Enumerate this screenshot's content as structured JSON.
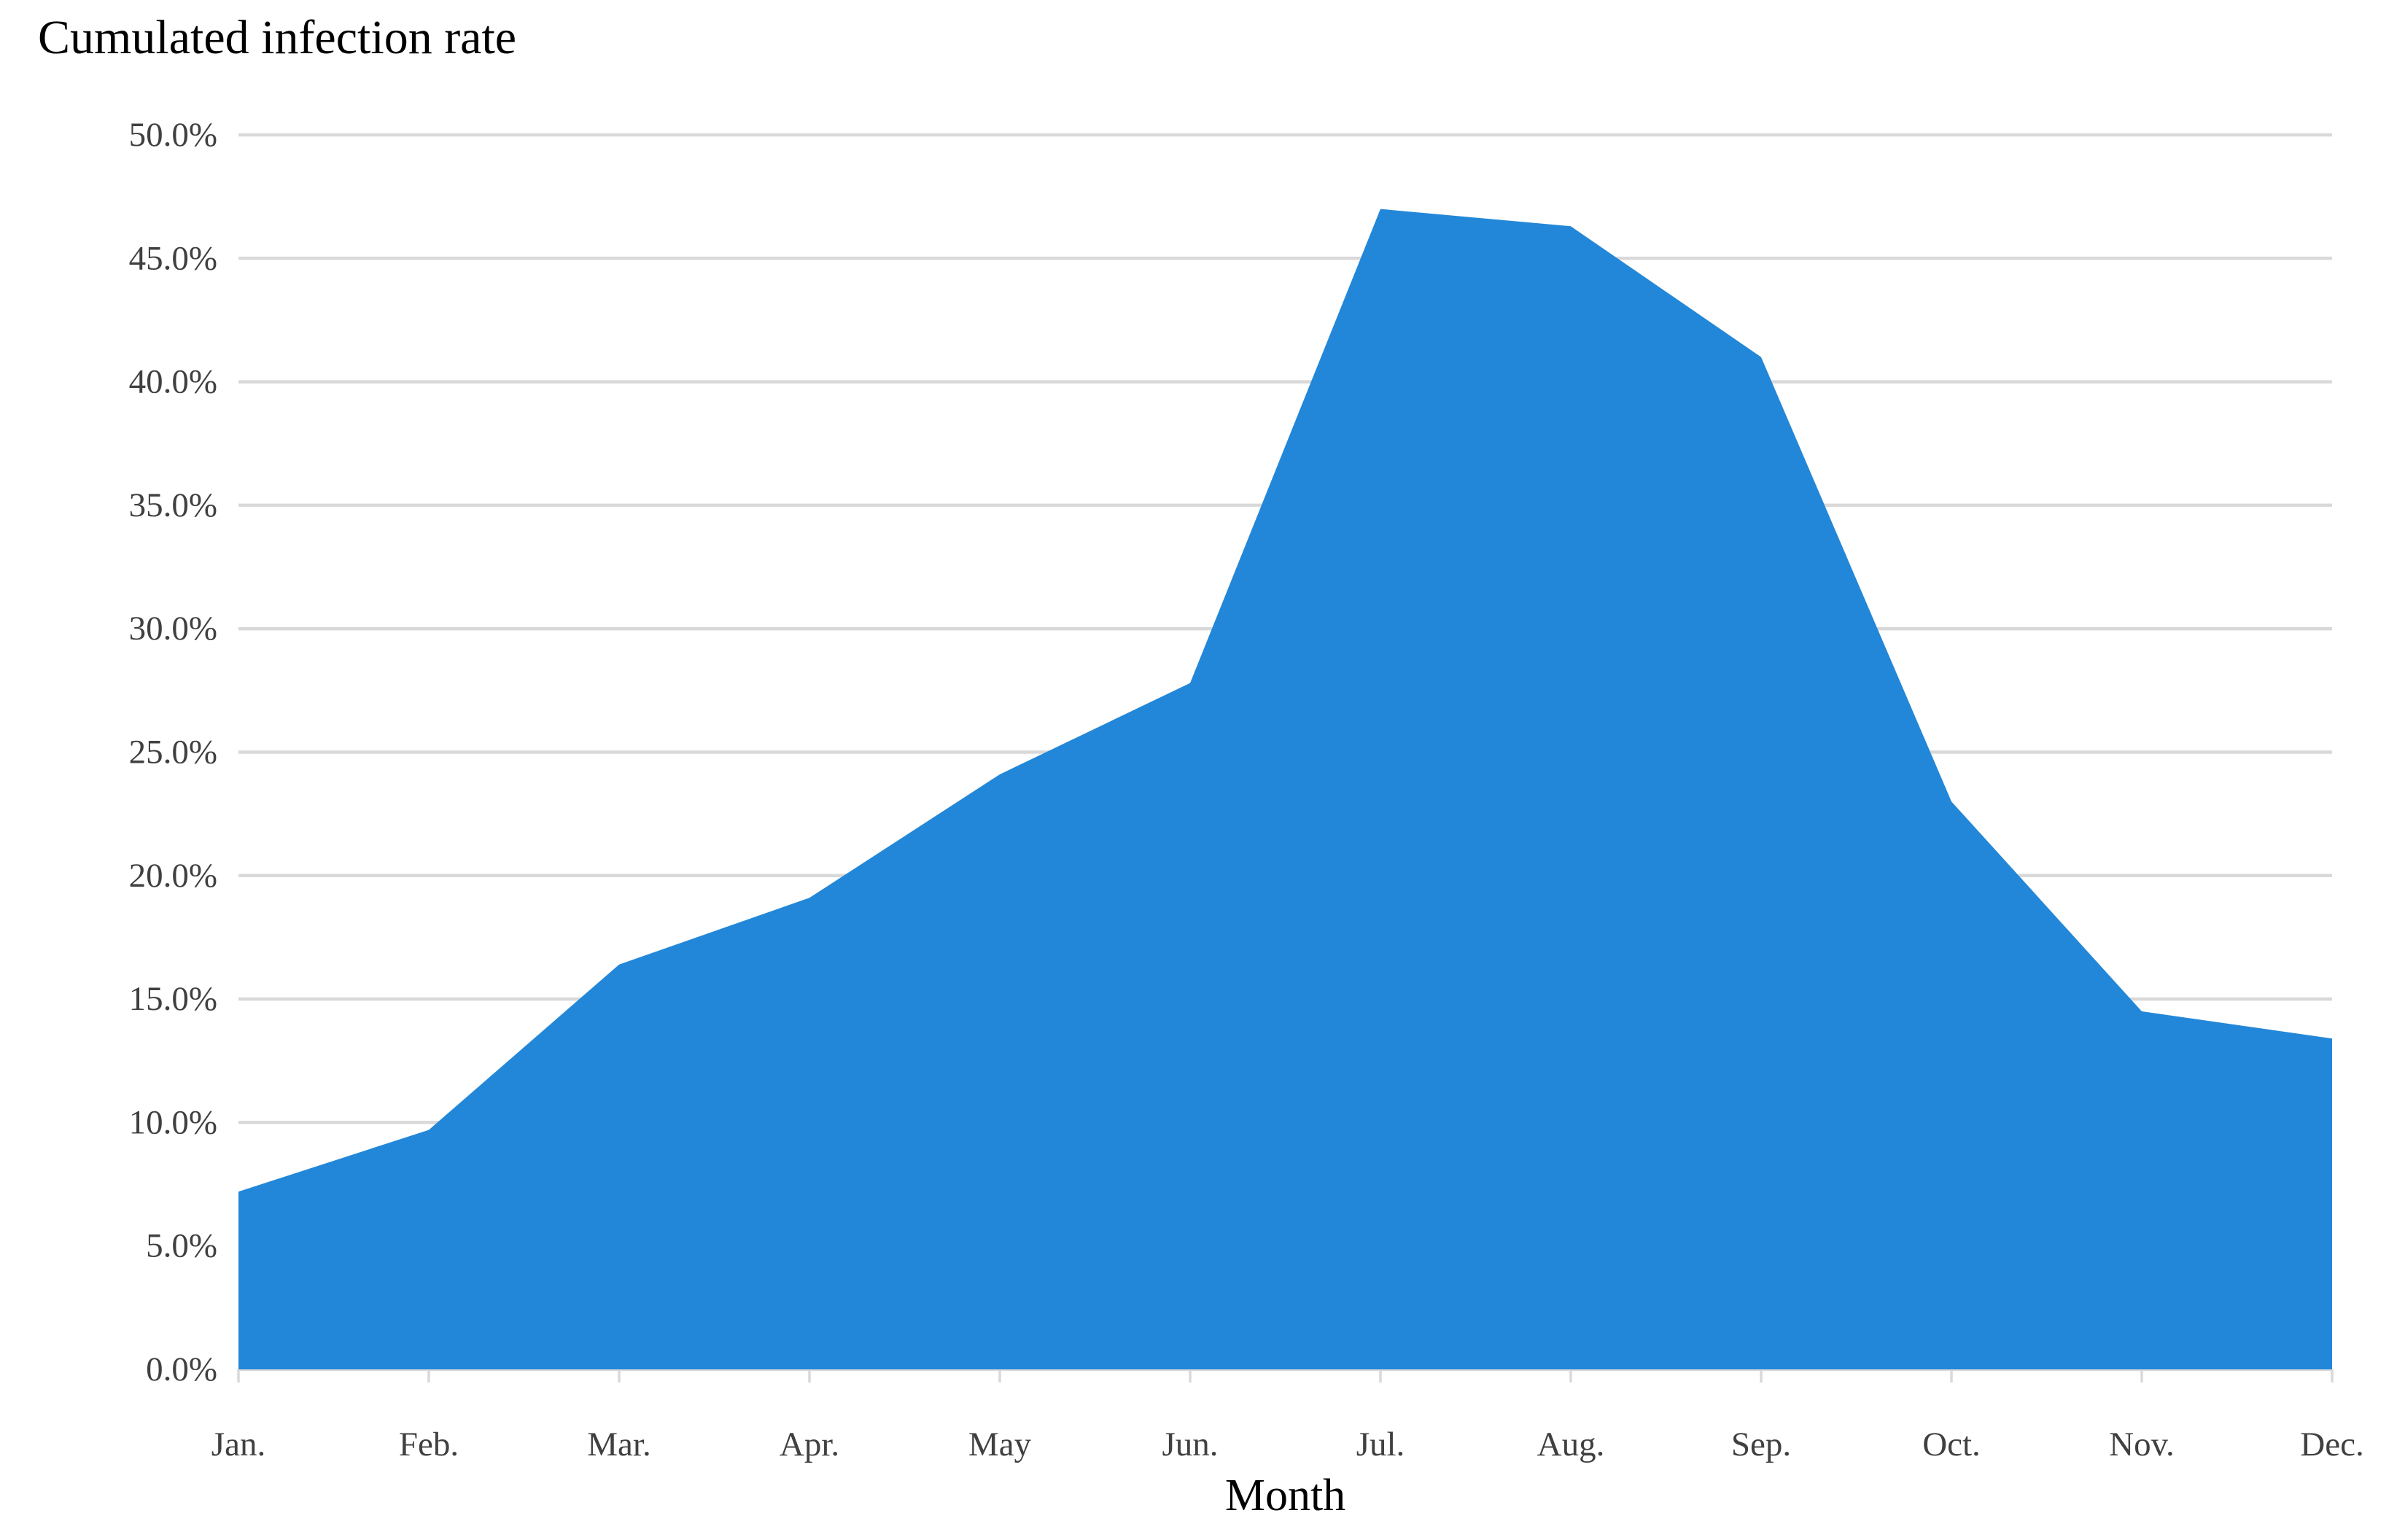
{
  "page": {
    "background": "#ffffff"
  },
  "chart_data": {
    "type": "area",
    "title": "Cumulated infection rate",
    "xlabel": "Month",
    "ylabel": "",
    "categories": [
      "Jan.",
      "Feb.",
      "Mar.",
      "Apr.",
      "May",
      "Jun.",
      "Jul.",
      "Aug.",
      "Sep.",
      "Oct.",
      "Nov.",
      "Dec."
    ],
    "values": [
      7.2,
      9.7,
      16.4,
      19.1,
      24.1,
      27.8,
      47.0,
      46.3,
      41.0,
      23.0,
      14.5,
      13.4
    ],
    "unit": "%",
    "ylim": [
      0,
      50
    ],
    "ytick_step": 5,
    "ytick_labels": [
      "0.0%",
      "5.0%",
      "10.0%",
      "15.0%",
      "20.0%",
      "25.0%",
      "30.0%",
      "35.0%",
      "40.0%",
      "45.0%",
      "50.0%"
    ],
    "grid": true,
    "legend": "none",
    "series_name": "Cumulated infection rate",
    "colors": {
      "area": "#2287D8",
      "gridline": "#D9D9D9",
      "axis_line": "#D9D9D9",
      "tick_mark": "#D9D9D9",
      "tick_label": "#404040",
      "title": "#000000"
    }
  }
}
